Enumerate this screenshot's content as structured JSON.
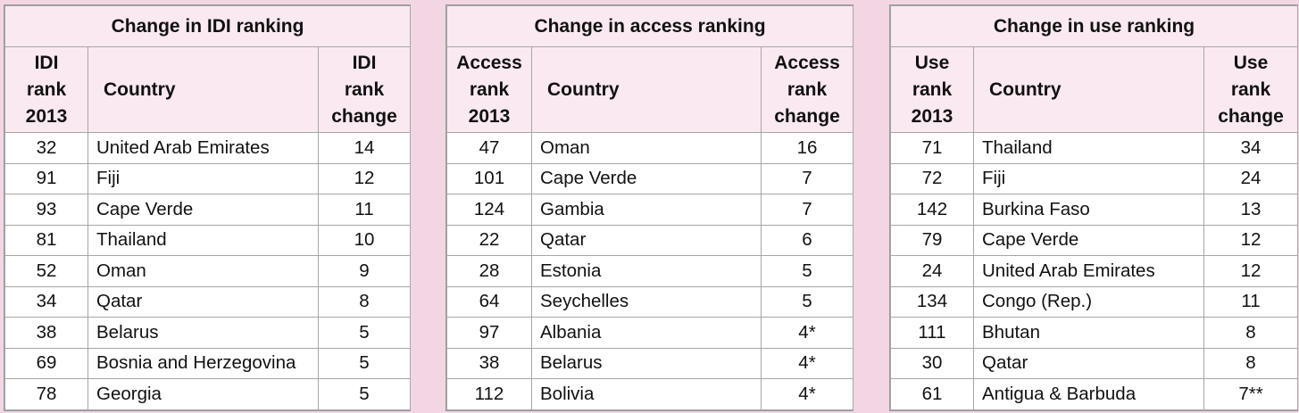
{
  "panels": [
    {
      "title": "Change in IDI ranking",
      "headers": {
        "rank_lines": [
          "IDI",
          "rank",
          "2013"
        ],
        "country": "Country",
        "change_lines": [
          "IDI",
          "rank",
          "change"
        ]
      },
      "rows": [
        {
          "rank": "32",
          "country": "United Arab Emirates",
          "change": "14"
        },
        {
          "rank": "91",
          "country": "Fiji",
          "change": "12"
        },
        {
          "rank": "93",
          "country": "Cape Verde",
          "change": "11"
        },
        {
          "rank": "81",
          "country": "Thailand",
          "change": "10"
        },
        {
          "rank": "52",
          "country": "Oman",
          "change": "9"
        },
        {
          "rank": "34",
          "country": "Qatar",
          "change": "8"
        },
        {
          "rank": "38",
          "country": "Belarus",
          "change": "5"
        },
        {
          "rank": "69",
          "country": "Bosnia and Herzegovina",
          "change": "5"
        },
        {
          "rank": "78",
          "country": "Georgia",
          "change": "5"
        }
      ]
    },
    {
      "title": "Change in access ranking",
      "headers": {
        "rank_lines": [
          "Access",
          "rank",
          "2013"
        ],
        "country": "Country",
        "change_lines": [
          "Access",
          "rank",
          "change"
        ]
      },
      "rows": [
        {
          "rank": "47",
          "country": "Oman",
          "change": "16"
        },
        {
          "rank": "101",
          "country": "Cape Verde",
          "change": "7"
        },
        {
          "rank": "124",
          "country": "Gambia",
          "change": "7"
        },
        {
          "rank": "22",
          "country": "Qatar",
          "change": "6"
        },
        {
          "rank": "28",
          "country": "Estonia",
          "change": "5"
        },
        {
          "rank": "64",
          "country": "Seychelles",
          "change": "5"
        },
        {
          "rank": "97",
          "country": "Albania",
          "change": "4*"
        },
        {
          "rank": "38",
          "country": "Belarus",
          "change": "4*"
        },
        {
          "rank": "112",
          "country": "Bolivia",
          "change": "4*"
        }
      ]
    },
    {
      "title": "Change in use ranking",
      "headers": {
        "rank_lines": [
          "Use",
          "rank",
          "2013"
        ],
        "country": "Country",
        "change_lines": [
          "Use",
          "rank",
          "change"
        ]
      },
      "rows": [
        {
          "rank": "71",
          "country": "Thailand",
          "change": "34"
        },
        {
          "rank": "72",
          "country": "Fiji",
          "change": "24"
        },
        {
          "rank": "142",
          "country": "Burkina Faso",
          "change": "13"
        },
        {
          "rank": "79",
          "country": "Cape Verde",
          "change": "12"
        },
        {
          "rank": "24",
          "country": "United Arab Emirates",
          "change": "12"
        },
        {
          "rank": "134",
          "country": "Congo (Rep.)",
          "change": "11"
        },
        {
          "rank": "111",
          "country": "Bhutan",
          "change": "8"
        },
        {
          "rank": "30",
          "country": "Qatar",
          "change": "8"
        },
        {
          "rank": "61",
          "country": "Antigua & Barbuda",
          "change": "7**"
        }
      ]
    }
  ]
}
